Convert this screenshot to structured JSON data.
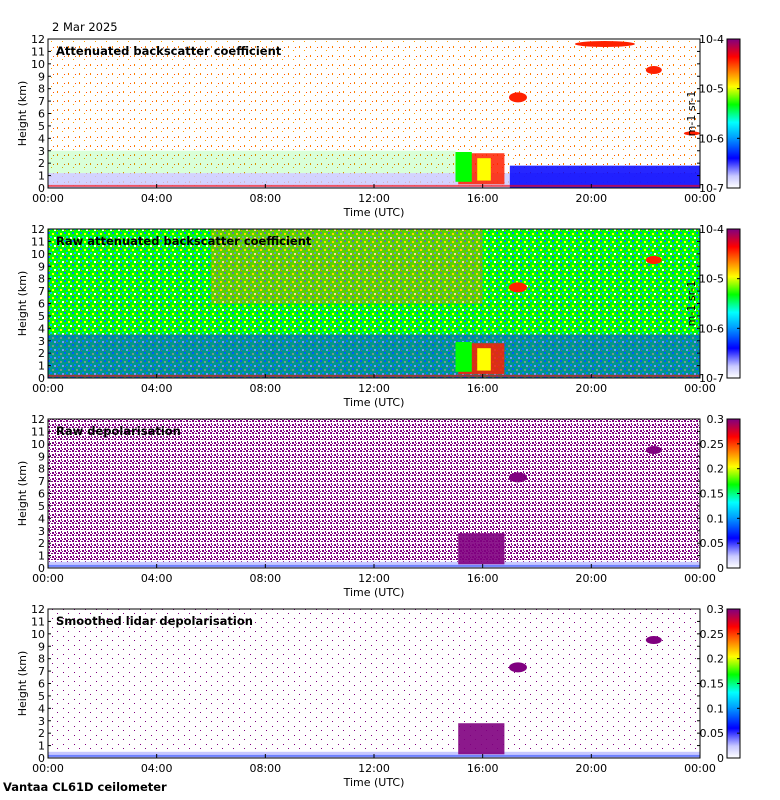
{
  "header": {
    "date": "2 Mar 2025"
  },
  "footer": {
    "instrument": "Vantaa CL61D ceilometer"
  },
  "chart_data": [
    {
      "type": "heatmap",
      "title": "Attenuated backscatter coefficient",
      "xlabel": "Time (UTC)",
      "ylabel": "Height (km)",
      "xticks": [
        "00:00",
        "04:00",
        "08:00",
        "12:00",
        "16:00",
        "20:00",
        "00:00"
      ],
      "xlim_hours": [
        0,
        24
      ],
      "yticks": [
        0,
        1,
        2,
        3,
        4,
        5,
        6,
        7,
        8,
        9,
        10,
        11,
        12
      ],
      "ylim": [
        0,
        12
      ],
      "colorbar": {
        "scale": "log",
        "min": 1e-07,
        "max": 0.0001,
        "tick_labels": [
          "10-7",
          "10-6",
          "10-5",
          "10-4"
        ],
        "label": "m-1 sr-1"
      }
    },
    {
      "type": "heatmap",
      "title": "Raw attenuated backscatter coefficient",
      "xlabel": "Time (UTC)",
      "ylabel": "Height (km)",
      "xticks": [
        "00:00",
        "04:00",
        "08:00",
        "12:00",
        "16:00",
        "20:00",
        "00:00"
      ],
      "xlim_hours": [
        0,
        24
      ],
      "yticks": [
        0,
        1,
        2,
        3,
        4,
        5,
        6,
        7,
        8,
        9,
        10,
        11,
        12
      ],
      "ylim": [
        0,
        12
      ],
      "colorbar": {
        "scale": "log",
        "min": 1e-07,
        "max": 0.0001,
        "tick_labels": [
          "10-7",
          "10-6",
          "10-5",
          "10-4"
        ],
        "label": "m-1 sr-1"
      }
    },
    {
      "type": "heatmap",
      "title": "Raw depolarisation",
      "xlabel": "Time (UTC)",
      "ylabel": "Height (km)",
      "xticks": [
        "00:00",
        "04:00",
        "08:00",
        "12:00",
        "16:00",
        "20:00",
        "00:00"
      ],
      "xlim_hours": [
        0,
        24
      ],
      "yticks": [
        0,
        1,
        2,
        3,
        4,
        5,
        6,
        7,
        8,
        9,
        10,
        11,
        12
      ],
      "ylim": [
        0,
        12
      ],
      "colorbar": {
        "scale": "linear",
        "min": 0,
        "max": 0.3,
        "tick_labels": [
          "0",
          "0.05",
          "0.1",
          "0.15",
          "0.2",
          "0.25",
          "0.3"
        ],
        "label": ""
      }
    },
    {
      "type": "heatmap",
      "title": "Smoothed lidar depolarisation",
      "xlabel": "Time (UTC)",
      "ylabel": "Height (km)",
      "xticks": [
        "00:00",
        "04:00",
        "08:00",
        "12:00",
        "16:00",
        "20:00",
        "00:00"
      ],
      "xlim_hours": [
        0,
        24
      ],
      "yticks": [
        0,
        1,
        2,
        3,
        4,
        5,
        6,
        7,
        8,
        9,
        10,
        11,
        12
      ],
      "ylim": [
        0,
        12
      ],
      "colorbar": {
        "scale": "linear",
        "min": 0,
        "max": 0.3,
        "tick_labels": [
          "0",
          "0.05",
          "0.1",
          "0.15",
          "0.2",
          "0.25",
          "0.3"
        ],
        "label": ""
      }
    }
  ],
  "colors": {
    "scale": [
      "#ffffff",
      "#c8c8ff",
      "#5050ff",
      "#0000ff",
      "#00a0ff",
      "#00ffff",
      "#00ff00",
      "#b0ff00",
      "#ffff00",
      "#ffa000",
      "#ff5000",
      "#ff0000",
      "#a00030",
      "#800080"
    ],
    "depol": "#800080"
  }
}
